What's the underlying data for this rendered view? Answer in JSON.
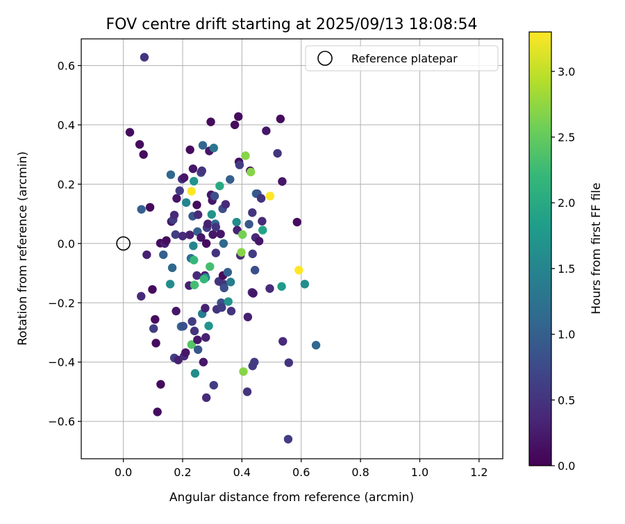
{
  "chart_data": {
    "type": "scatter",
    "title": "FOV centre drift starting at 2025/09/13 18:08:54",
    "xlabel": "Angular distance from reference (arcmin)",
    "ylabel": "Rotation from reference (arcmin)",
    "xlim": [
      -0.142,
      1.28
    ],
    "ylim": [
      -0.726,
      0.69
    ],
    "x_ticks": [
      0.0,
      0.2,
      0.4,
      0.6,
      0.8,
      1.0,
      1.2
    ],
    "x_tick_labels": [
      "0.0",
      "0.2",
      "0.4",
      "0.6",
      "0.8",
      "1.0",
      "1.2"
    ],
    "y_ticks": [
      -0.6,
      -0.4,
      -0.2,
      0.0,
      0.2,
      0.4,
      0.6
    ],
    "y_tick_labels": [
      "−0.6",
      "−0.4",
      "−0.2",
      "0.0",
      "0.2",
      "0.4",
      "0.6"
    ],
    "grid": true,
    "legend": {
      "placement": "upper-right",
      "entries": [
        "Reference platepar"
      ]
    },
    "reference_point": {
      "x": 0.0,
      "y": 0.0,
      "label": "Reference platepar"
    },
    "colorbar": {
      "label": "Hours from first FF file",
      "range": [
        0.0,
        3.3
      ],
      "ticks": [
        0.0,
        0.5,
        1.0,
        1.5,
        2.0,
        2.5,
        3.0
      ],
      "tick_labels": [
        "0.0",
        "0.5",
        "1.0",
        "1.5",
        "2.0",
        "2.5",
        "3.0"
      ],
      "colormap": "viridis",
      "colormap_stops": [
        "#440154",
        "#482878",
        "#3e4989",
        "#31688e",
        "#26828e",
        "#1f9e89",
        "#35b779",
        "#6ece58",
        "#b5de2b",
        "#fde725"
      ]
    },
    "points": [
      {
        "x": 0.071,
        "y": 0.628,
        "h": 0.5
      },
      {
        "x": 0.022,
        "y": 0.375,
        "h": 0.1
      },
      {
        "x": 0.055,
        "y": 0.334,
        "h": 0.1
      },
      {
        "x": 0.068,
        "y": 0.3,
        "h": 0.1
      },
      {
        "x": 0.061,
        "y": 0.115,
        "h": 1.0
      },
      {
        "x": 0.09,
        "y": 0.122,
        "h": 0.1
      },
      {
        "x": 0.079,
        "y": -0.038,
        "h": 0.3
      },
      {
        "x": 0.06,
        "y": -0.178,
        "h": 0.4
      },
      {
        "x": 0.098,
        "y": -0.155,
        "h": 0.1
      },
      {
        "x": 0.107,
        "y": -0.256,
        "h": 0.1
      },
      {
        "x": 0.102,
        "y": -0.287,
        "h": 0.6
      },
      {
        "x": 0.11,
        "y": -0.336,
        "h": 0.1
      },
      {
        "x": 0.126,
        "y": -0.475,
        "h": 0.1
      },
      {
        "x": 0.115,
        "y": -0.568,
        "h": 0.1
      },
      {
        "x": 0.125,
        "y": 0.001,
        "h": 0.1
      },
      {
        "x": 0.14,
        "y": 0.0,
        "h": 0.3
      },
      {
        "x": 0.145,
        "y": 0.01,
        "h": 0.1
      },
      {
        "x": 0.135,
        "y": -0.038,
        "h": 1.0
      },
      {
        "x": 0.158,
        "y": -0.137,
        "h": 1.6
      },
      {
        "x": 0.165,
        "y": -0.082,
        "h": 1.1
      },
      {
        "x": 0.16,
        "y": 0.232,
        "h": 1.1
      },
      {
        "x": 0.162,
        "y": 0.074,
        "h": 0.2
      },
      {
        "x": 0.168,
        "y": 0.08,
        "h": 0.6
      },
      {
        "x": 0.172,
        "y": 0.096,
        "h": 0.4
      },
      {
        "x": 0.176,
        "y": 0.03,
        "h": 0.6
      },
      {
        "x": 0.178,
        "y": -0.228,
        "h": 0.2
      },
      {
        "x": 0.172,
        "y": -0.386,
        "h": 0.6
      },
      {
        "x": 0.185,
        "y": -0.393,
        "h": 0.3
      },
      {
        "x": 0.18,
        "y": 0.152,
        "h": 0.2
      },
      {
        "x": 0.19,
        "y": 0.178,
        "h": 0.6
      },
      {
        "x": 0.198,
        "y": 0.217,
        "h": 0.5
      },
      {
        "x": 0.205,
        "y": 0.222,
        "h": 0.2
      },
      {
        "x": 0.2,
        "y": 0.025,
        "h": 0.4
      },
      {
        "x": 0.195,
        "y": -0.28,
        "h": 1.1
      },
      {
        "x": 0.202,
        "y": -0.279,
        "h": 0.8
      },
      {
        "x": 0.205,
        "y": -0.38,
        "h": 0.4
      },
      {
        "x": 0.21,
        "y": -0.368,
        "h": 0.2
      },
      {
        "x": 0.212,
        "y": 0.138,
        "h": 1.5
      },
      {
        "x": 0.225,
        "y": 0.316,
        "h": 0.1
      },
      {
        "x": 0.224,
        "y": 0.029,
        "h": 0.3
      },
      {
        "x": 0.228,
        "y": -0.05,
        "h": 1.2
      },
      {
        "x": 0.222,
        "y": -0.142,
        "h": 0.3
      },
      {
        "x": 0.23,
        "y": 0.176,
        "h": 3.3
      },
      {
        "x": 0.235,
        "y": 0.252,
        "h": 0.2
      },
      {
        "x": 0.238,
        "y": 0.21,
        "h": 1.7
      },
      {
        "x": 0.234,
        "y": 0.092,
        "h": 0.9
      },
      {
        "x": 0.236,
        "y": -0.008,
        "h": 1.5
      },
      {
        "x": 0.238,
        "y": -0.056,
        "h": 2.2
      },
      {
        "x": 0.24,
        "y": -0.14,
        "h": 2.3
      },
      {
        "x": 0.232,
        "y": -0.263,
        "h": 0.6
      },
      {
        "x": 0.24,
        "y": -0.295,
        "h": 0.5
      },
      {
        "x": 0.23,
        "y": -0.341,
        "h": 2.4
      },
      {
        "x": 0.242,
        "y": -0.438,
        "h": 1.6
      },
      {
        "x": 0.248,
        "y": 0.13,
        "h": 0.1
      },
      {
        "x": 0.252,
        "y": 0.097,
        "h": 0.4
      },
      {
        "x": 0.25,
        "y": 0.04,
        "h": 1.0
      },
      {
        "x": 0.248,
        "y": -0.108,
        "h": 0.4
      },
      {
        "x": 0.25,
        "y": -0.325,
        "h": 0.2
      },
      {
        "x": 0.252,
        "y": -0.358,
        "h": 0.9
      },
      {
        "x": 0.262,
        "y": 0.239,
        "h": 0.7
      },
      {
        "x": 0.265,
        "y": 0.245,
        "h": 0.5
      },
      {
        "x": 0.268,
        "y": 0.331,
        "h": 1.1
      },
      {
        "x": 0.262,
        "y": 0.02,
        "h": 0.2
      },
      {
        "x": 0.27,
        "y": -0.4,
        "h": 0.2
      },
      {
        "x": 0.266,
        "y": -0.237,
        "h": 1.4
      },
      {
        "x": 0.275,
        "y": -0.108,
        "h": 0.3
      },
      {
        "x": 0.278,
        "y": -0.115,
        "h": 1.5
      },
      {
        "x": 0.272,
        "y": -0.12,
        "h": 2.2
      },
      {
        "x": 0.276,
        "y": -0.218,
        "h": 0.3
      },
      {
        "x": 0.278,
        "y": -0.317,
        "h": 0.3
      },
      {
        "x": 0.282,
        "y": 0.053,
        "h": 0.6
      },
      {
        "x": 0.285,
        "y": 0.066,
        "h": 0.3
      },
      {
        "x": 0.28,
        "y": 0.0,
        "h": 0.1
      },
      {
        "x": 0.288,
        "y": -0.278,
        "h": 1.7
      },
      {
        "x": 0.28,
        "y": -0.52,
        "h": 0.4
      },
      {
        "x": 0.29,
        "y": 0.312,
        "h": 0.2
      },
      {
        "x": 0.295,
        "y": 0.41,
        "h": 0.1
      },
      {
        "x": 0.296,
        "y": 0.164,
        "h": 0.2
      },
      {
        "x": 0.298,
        "y": 0.098,
        "h": 1.7
      },
      {
        "x": 0.292,
        "y": -0.078,
        "h": 2.3
      },
      {
        "x": 0.3,
        "y": 0.145,
        "h": 0.2
      },
      {
        "x": 0.302,
        "y": 0.03,
        "h": 0.2
      },
      {
        "x": 0.305,
        "y": 0.322,
        "h": 1.3
      },
      {
        "x": 0.308,
        "y": 0.16,
        "h": 0.8
      },
      {
        "x": 0.31,
        "y": 0.066,
        "h": 1.1
      },
      {
        "x": 0.312,
        "y": 0.055,
        "h": 0.5
      },
      {
        "x": 0.305,
        "y": -0.478,
        "h": 0.6
      },
      {
        "x": 0.312,
        "y": -0.032,
        "h": 0.5
      },
      {
        "x": 0.315,
        "y": -0.222,
        "h": 0.5
      },
      {
        "x": 0.322,
        "y": -0.128,
        "h": 0.5
      },
      {
        "x": 0.325,
        "y": 0.194,
        "h": 2.0
      },
      {
        "x": 0.328,
        "y": 0.032,
        "h": 0.2
      },
      {
        "x": 0.33,
        "y": -0.2,
        "h": 0.8
      },
      {
        "x": 0.332,
        "y": -0.216,
        "h": 0.6
      },
      {
        "x": 0.335,
        "y": 0.117,
        "h": 0.8
      },
      {
        "x": 0.338,
        "y": 0.0,
        "h": 1.1
      },
      {
        "x": 0.336,
        "y": -0.108,
        "h": 0.1
      },
      {
        "x": 0.338,
        "y": -0.137,
        "h": 0.5
      },
      {
        "x": 0.34,
        "y": -0.15,
        "h": 0.8
      },
      {
        "x": 0.345,
        "y": 0.132,
        "h": 0.4
      },
      {
        "x": 0.352,
        "y": -0.097,
        "h": 1.0
      },
      {
        "x": 0.354,
        "y": -0.196,
        "h": 1.7
      },
      {
        "x": 0.36,
        "y": 0.216,
        "h": 1.0
      },
      {
        "x": 0.362,
        "y": -0.13,
        "h": 1.4
      },
      {
        "x": 0.364,
        "y": -0.228,
        "h": 0.5
      },
      {
        "x": 0.376,
        "y": 0.4,
        "h": 0.1
      },
      {
        "x": 0.382,
        "y": 0.072,
        "h": 1.6
      },
      {
        "x": 0.384,
        "y": 0.045,
        "h": 0.3
      },
      {
        "x": 0.388,
        "y": 0.428,
        "h": 0.1
      },
      {
        "x": 0.39,
        "y": 0.275,
        "h": 0.1
      },
      {
        "x": 0.392,
        "y": 0.265,
        "h": 0.6
      },
      {
        "x": 0.395,
        "y": -0.04,
        "h": 0.4
      },
      {
        "x": 0.398,
        "y": -0.03,
        "h": 2.7
      },
      {
        "x": 0.402,
        "y": 0.03,
        "h": 2.6
      },
      {
        "x": 0.405,
        "y": -0.432,
        "h": 2.7
      },
      {
        "x": 0.412,
        "y": 0.296,
        "h": 2.7
      },
      {
        "x": 0.418,
        "y": -0.5,
        "h": 0.5
      },
      {
        "x": 0.42,
        "y": -0.248,
        "h": 0.3
      },
      {
        "x": 0.424,
        "y": 0.065,
        "h": 0.9
      },
      {
        "x": 0.428,
        "y": 0.245,
        "h": 0.1
      },
      {
        "x": 0.43,
        "y": 0.241,
        "h": 2.7
      },
      {
        "x": 0.435,
        "y": 0.104,
        "h": 0.5
      },
      {
        "x": 0.436,
        "y": -0.035,
        "h": 0.6
      },
      {
        "x": 0.434,
        "y": -0.165,
        "h": 0.4
      },
      {
        "x": 0.438,
        "y": -0.168,
        "h": 0.2
      },
      {
        "x": 0.436,
        "y": -0.413,
        "h": 0.6
      },
      {
        "x": 0.442,
        "y": -0.4,
        "h": 0.6
      },
      {
        "x": 0.444,
        "y": -0.09,
        "h": 0.8
      },
      {
        "x": 0.446,
        "y": 0.02,
        "h": 0.4
      },
      {
        "x": 0.448,
        "y": 0.168,
        "h": 1.1
      },
      {
        "x": 0.452,
        "y": 0.168,
        "h": 0.9
      },
      {
        "x": 0.458,
        "y": 0.008,
        "h": 0.2
      },
      {
        "x": 0.465,
        "y": 0.152,
        "h": 0.5
      },
      {
        "x": 0.468,
        "y": 0.075,
        "h": 0.4
      },
      {
        "x": 0.47,
        "y": 0.045,
        "h": 1.9
      },
      {
        "x": 0.482,
        "y": 0.38,
        "h": 0.2
      },
      {
        "x": 0.494,
        "y": -0.152,
        "h": 0.4
      },
      {
        "x": 0.495,
        "y": 0.16,
        "h": 3.3
      },
      {
        "x": 0.52,
        "y": 0.304,
        "h": 0.5
      },
      {
        "x": 0.53,
        "y": 0.42,
        "h": 0.1
      },
      {
        "x": 0.534,
        "y": -0.145,
        "h": 1.8
      },
      {
        "x": 0.536,
        "y": 0.209,
        "h": 0.2
      },
      {
        "x": 0.538,
        "y": -0.33,
        "h": 0.4
      },
      {
        "x": 0.556,
        "y": -0.66,
        "h": 0.6
      },
      {
        "x": 0.558,
        "y": -0.402,
        "h": 0.5
      },
      {
        "x": 0.586,
        "y": 0.072,
        "h": 0.1
      },
      {
        "x": 0.592,
        "y": -0.09,
        "h": 3.3
      },
      {
        "x": 0.612,
        "y": -0.137,
        "h": 1.6
      },
      {
        "x": 0.65,
        "y": -0.343,
        "h": 1.1
      }
    ]
  }
}
